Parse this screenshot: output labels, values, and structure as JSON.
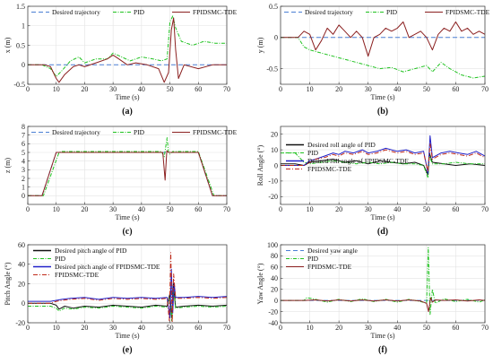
{
  "chart_data": [
    {
      "id": "a",
      "type": "line",
      "caption": "(a)",
      "xlabel": "Time (s)",
      "ylabel": "x (m)",
      "xlim": [
        0,
        70
      ],
      "ylim": [
        -0.5,
        1.5
      ],
      "xticks": [
        0,
        10,
        20,
        30,
        40,
        50,
        60,
        70
      ],
      "yticks": [
        -0.5,
        0,
        0.5,
        1,
        1.5
      ],
      "legend": "top-inside-row",
      "series": [
        {
          "name": "Desired trajectory",
          "color": "#4a7fd4",
          "dash": "5,3",
          "x": [
            0,
            70
          ],
          "y": [
            0,
            0
          ]
        },
        {
          "name": "PID",
          "color": "#1fc21f",
          "dash": "4,1.5,1,1.5",
          "x": [
            0,
            5,
            8,
            10,
            12,
            15,
            18,
            20,
            24,
            28,
            30,
            33,
            36,
            40,
            44,
            47,
            49,
            50,
            51,
            52,
            54,
            58,
            62,
            66,
            70
          ],
          "y": [
            0,
            0,
            -0.1,
            -0.3,
            -0.15,
            0.1,
            0.2,
            0.05,
            0.15,
            0.15,
            0.3,
            0.2,
            0.1,
            0.2,
            0.15,
            0.1,
            0.15,
            1.1,
            1.25,
            0.95,
            0.6,
            0.5,
            0.6,
            0.55,
            0.55
          ]
        },
        {
          "name": "FPIDSMC-TDE",
          "color": "#8b2020",
          "dash": "",
          "x": [
            0,
            6,
            8,
            10,
            11,
            13,
            16,
            18,
            20,
            24,
            28,
            30,
            32,
            35,
            38,
            42,
            46,
            48,
            49.5,
            50.5,
            51.3,
            52,
            53,
            55,
            60,
            65,
            70
          ],
          "y": [
            0,
            0,
            -0.05,
            -0.35,
            -0.45,
            -0.25,
            -0.05,
            0,
            -0.05,
            0.05,
            0.15,
            0.25,
            0.15,
            0.0,
            0.05,
            0.0,
            -0.1,
            -0.45,
            -0.2,
            0.9,
            1.2,
            0.4,
            -0.35,
            0.0,
            -0.1,
            0.0,
            0.0
          ]
        }
      ]
    },
    {
      "id": "b",
      "type": "line",
      "caption": "(b)",
      "xlabel": "Time (s)",
      "ylabel": "y (m)",
      "xlim": [
        0,
        70
      ],
      "ylim": [
        -0.75,
        0.5
      ],
      "xticks": [
        0,
        10,
        20,
        30,
        40,
        50,
        60,
        70
      ],
      "yticks": [
        -0.5,
        0,
        0.5
      ],
      "legend": "top-inside-row",
      "series": [
        {
          "name": "Desired trajectory",
          "color": "#4a7fd4",
          "dash": "5,3",
          "x": [
            0,
            70
          ],
          "y": [
            0,
            0
          ]
        },
        {
          "name": "PID",
          "color": "#1fc21f",
          "dash": "4,1.5,1,1.5",
          "x": [
            0,
            6,
            8,
            10,
            14,
            18,
            22,
            26,
            30,
            34,
            38,
            42,
            46,
            50,
            52,
            55,
            58,
            62,
            66,
            70
          ],
          "y": [
            0,
            0,
            -0.15,
            -0.2,
            -0.25,
            -0.3,
            -0.35,
            -0.4,
            -0.45,
            -0.5,
            -0.48,
            -0.55,
            -0.5,
            -0.45,
            -0.55,
            -0.4,
            -0.5,
            -0.6,
            -0.65,
            -0.62
          ]
        },
        {
          "name": "FPIDSMC-TDE",
          "color": "#8b2020",
          "dash": "",
          "x": [
            0,
            6,
            8,
            10,
            12,
            14,
            16,
            18,
            20,
            22,
            24,
            26,
            28,
            30,
            32,
            34,
            36,
            38,
            40,
            42,
            44,
            46,
            48,
            50,
            52,
            54,
            56,
            58,
            60,
            62,
            64,
            66,
            68,
            70
          ],
          "y": [
            0,
            0,
            0.1,
            0.05,
            -0.2,
            -0.05,
            0.15,
            0.05,
            0.2,
            0.1,
            0.0,
            0.1,
            0.0,
            -0.3,
            0.0,
            0.05,
            0.15,
            0.1,
            0.15,
            0.25,
            0.0,
            0.05,
            0.1,
            0.0,
            -0.2,
            0.05,
            0.15,
            0.1,
            0.25,
            0.1,
            0.15,
            0.05,
            0.1,
            0.05
          ]
        }
      ]
    },
    {
      "id": "c",
      "type": "line",
      "caption": "(c)",
      "xlabel": "Time (s)",
      "ylabel": "z (m)",
      "xlim": [
        0,
        70
      ],
      "ylim": [
        -1,
        8
      ],
      "xticks": [
        0,
        10,
        20,
        30,
        40,
        50,
        60,
        70
      ],
      "yticks": [
        0,
        1,
        2,
        3,
        4,
        5,
        6,
        7,
        8
      ],
      "legend": "top-inside-row",
      "series": [
        {
          "name": "Desired trajectory",
          "color": "#4a7fd4",
          "dash": "5,3",
          "x": [
            0,
            5,
            10,
            60,
            65,
            70
          ],
          "y": [
            0,
            0,
            5,
            5,
            0,
            0
          ]
        },
        {
          "name": "PID",
          "color": "#1fc21f",
          "dash": "4,1.5,1,1.5",
          "x": [
            0,
            5.5,
            11,
            12,
            20,
            30,
            40,
            47,
            48,
            49,
            49.5,
            50,
            51,
            60,
            65.5,
            70
          ],
          "y": [
            0,
            0,
            5.0,
            5.1,
            5.1,
            5.1,
            5.1,
            5.1,
            4.5,
            6.7,
            5.0,
            4.8,
            5.1,
            5.1,
            0,
            0
          ]
        },
        {
          "name": "FPIDSMC-TDE",
          "color": "#8b2020",
          "dash": "",
          "x": [
            0,
            5,
            10,
            20,
            30,
            40,
            47.5,
            48.3,
            48.9,
            49.5,
            50,
            60,
            65,
            70
          ],
          "y": [
            0,
            0,
            5.0,
            5.0,
            5.0,
            5.0,
            5.0,
            1.8,
            5.2,
            5.0,
            5.0,
            5.0,
            0,
            0
          ]
        }
      ]
    },
    {
      "id": "d",
      "type": "line",
      "caption": "(d)",
      "xlabel": "Time (s)",
      "ylabel": "Roll Angle (°)",
      "xlim": [
        0,
        70
      ],
      "ylim": [
        -25,
        25
      ],
      "xticks": [
        0,
        10,
        20,
        30,
        40,
        50,
        60,
        70
      ],
      "yticks": [
        -20,
        -10,
        0,
        10,
        20
      ],
      "legend": "stacked-inside",
      "series": [
        {
          "name": "Desired roll angle of PID",
          "color": "#111111",
          "dash": "",
          "x": [
            0,
            5,
            8,
            10,
            14,
            18,
            22,
            26,
            30,
            34,
            38,
            42,
            46,
            49,
            50.5,
            51,
            52,
            56,
            60,
            65,
            70
          ],
          "y": [
            1,
            1,
            0,
            2,
            3,
            4,
            2,
            3,
            1,
            3,
            2,
            1,
            2,
            0,
            -6,
            8,
            2,
            1,
            0,
            1,
            0
          ]
        },
        {
          "name": "PID",
          "color": "#1fc21f",
          "dash": "4,1.5,1,1.5",
          "x": [
            0,
            5,
            8,
            10,
            14,
            18,
            22,
            26,
            30,
            34,
            38,
            42,
            46,
            49,
            50.5,
            51,
            52,
            56,
            60,
            65,
            70
          ],
          "y": [
            8,
            8,
            2,
            1,
            2,
            3,
            2,
            1,
            2,
            1,
            2,
            1,
            1,
            0,
            -8,
            6,
            1,
            1,
            2,
            1,
            1
          ]
        },
        {
          "name": "Desired roll angle of FPIDSMC-TDE",
          "color": "#2020c8",
          "dash": "",
          "x": [
            0,
            8,
            10,
            12,
            15,
            18,
            20,
            22,
            25,
            28,
            30,
            33,
            36,
            40,
            43,
            46,
            49,
            50.5,
            51.2,
            52,
            55,
            58,
            61,
            64,
            67,
            70
          ],
          "y": [
            0,
            0,
            3,
            4,
            6,
            8,
            7,
            9,
            8,
            10,
            8,
            9,
            11,
            9,
            10,
            8,
            9,
            -5,
            19,
            5,
            8,
            9,
            8,
            7,
            9,
            6
          ]
        },
        {
          "name": "FPIDSMC-TDE",
          "color": "#c02a1a",
          "dash": "5,2,1,2",
          "x": [
            0,
            8,
            10,
            12,
            15,
            18,
            20,
            22,
            25,
            28,
            30,
            33,
            36,
            40,
            43,
            46,
            49,
            50.5,
            51.2,
            52,
            55,
            58,
            61,
            64,
            67,
            70
          ],
          "y": [
            0,
            0,
            2,
            4,
            5,
            7,
            6,
            8,
            7,
            9,
            7,
            8,
            10,
            8,
            9,
            7,
            8,
            -4,
            14,
            4,
            7,
            8,
            7,
            6,
            8,
            5
          ]
        }
      ]
    },
    {
      "id": "e",
      "type": "line",
      "caption": "(e)",
      "xlabel": "Time (s)",
      "ylabel": "Pitch Angle (°)",
      "xlim": [
        0,
        70
      ],
      "ylim": [
        -20,
        60
      ],
      "xticks": [
        0,
        10,
        20,
        30,
        40,
        50,
        60,
        70
      ],
      "yticks": [
        -20,
        0,
        20,
        40,
        60
      ],
      "legend": "stacked-inside",
      "series": [
        {
          "name": "Desired pitch angle of PID",
          "color": "#111111",
          "dash": "",
          "x": [
            0,
            8,
            10,
            11,
            13,
            16,
            20,
            25,
            30,
            35,
            40,
            45,
            49,
            50,
            50.6,
            51.2,
            52,
            55,
            60,
            65,
            70
          ],
          "y": [
            0,
            0,
            -2,
            -6,
            -3,
            -5,
            -3,
            -4,
            -2,
            -3,
            -4,
            -2,
            -3,
            10,
            -15,
            20,
            -4,
            -3,
            -2,
            -3,
            -2
          ]
        },
        {
          "name": "PID",
          "color": "#1fc21f",
          "dash": "4,1.5,1,1.5",
          "x": [
            0,
            8,
            10,
            11,
            13,
            16,
            20,
            25,
            30,
            35,
            40,
            45,
            49,
            50,
            50.6,
            51.2,
            52,
            55,
            60,
            65,
            70
          ],
          "y": [
            -3,
            -3,
            -5,
            -8,
            -5,
            -6,
            -4,
            -5,
            -3,
            -4,
            -5,
            -3,
            -4,
            5,
            -18,
            15,
            -5,
            -4,
            -3,
            -4,
            -3
          ]
        },
        {
          "name": "Desired pitch angle of FPIDSMC-TDE",
          "color": "#2020c8",
          "dash": "",
          "x": [
            0,
            8,
            10,
            12,
            15,
            20,
            25,
            30,
            35,
            40,
            45,
            49,
            50,
            50.5,
            51,
            51.5,
            52,
            55,
            60,
            65,
            70
          ],
          "y": [
            2,
            2,
            3,
            4,
            5,
            6,
            4,
            6,
            5,
            6,
            5,
            6,
            -15,
            35,
            -10,
            20,
            6,
            6,
            7,
            6,
            7
          ]
        },
        {
          "name": "FPIDSMC-TDE",
          "color": "#c02a1a",
          "dash": "5,2,1,2",
          "x": [
            0,
            8,
            10,
            12,
            15,
            20,
            25,
            30,
            35,
            40,
            45,
            49,
            49.8,
            50.3,
            50.8,
            51.3,
            52,
            55,
            60,
            65,
            70
          ],
          "y": [
            0,
            0,
            2,
            3,
            4,
            5,
            3,
            5,
            4,
            5,
            4,
            5,
            -18,
            52,
            -20,
            30,
            5,
            5,
            6,
            5,
            6
          ]
        }
      ]
    },
    {
      "id": "f",
      "type": "line",
      "caption": "(f)",
      "xlabel": "Time (s)",
      "ylabel": "Yaw Angle (°)",
      "xlim": [
        0,
        70
      ],
      "ylim": [
        -40,
        100
      ],
      "xticks": [
        0,
        10,
        20,
        30,
        40,
        50,
        60,
        70
      ],
      "yticks": [
        -40,
        -20,
        0,
        20,
        40,
        60,
        80,
        100
      ],
      "legend": "stacked-inside",
      "series": [
        {
          "name": "Desired yaw angle",
          "color": "#4a7fd4",
          "dash": "5,3",
          "x": [
            0,
            70
          ],
          "y": [
            0,
            0
          ]
        },
        {
          "name": "PID",
          "color": "#1fc21f",
          "dash": "4,1.5,1,1.5",
          "x": [
            0,
            8,
            9,
            12,
            16,
            20,
            24,
            28,
            32,
            36,
            40,
            44,
            48,
            50,
            50.6,
            51.2,
            52,
            53,
            56,
            60,
            64,
            68,
            70
          ],
          "y": [
            0,
            0,
            5,
            2,
            -3,
            2,
            -2,
            3,
            -2,
            2,
            -3,
            2,
            -2,
            -5,
            95,
            -25,
            20,
            -5,
            3,
            -2,
            2,
            -3,
            1
          ]
        },
        {
          "name": "FPIDSMC-TDE",
          "color": "#8b2020",
          "dash": "",
          "x": [
            0,
            8,
            12,
            16,
            20,
            24,
            28,
            32,
            36,
            40,
            44,
            48,
            50,
            50.7,
            51.4,
            52,
            53,
            56,
            60,
            64,
            68,
            70
          ],
          "y": [
            0,
            0,
            1,
            -1,
            1,
            -1,
            1,
            -1,
            1,
            -1,
            1,
            -1,
            -5,
            -20,
            5,
            -3,
            1,
            0,
            1,
            -1,
            1,
            0
          ]
        }
      ]
    }
  ]
}
